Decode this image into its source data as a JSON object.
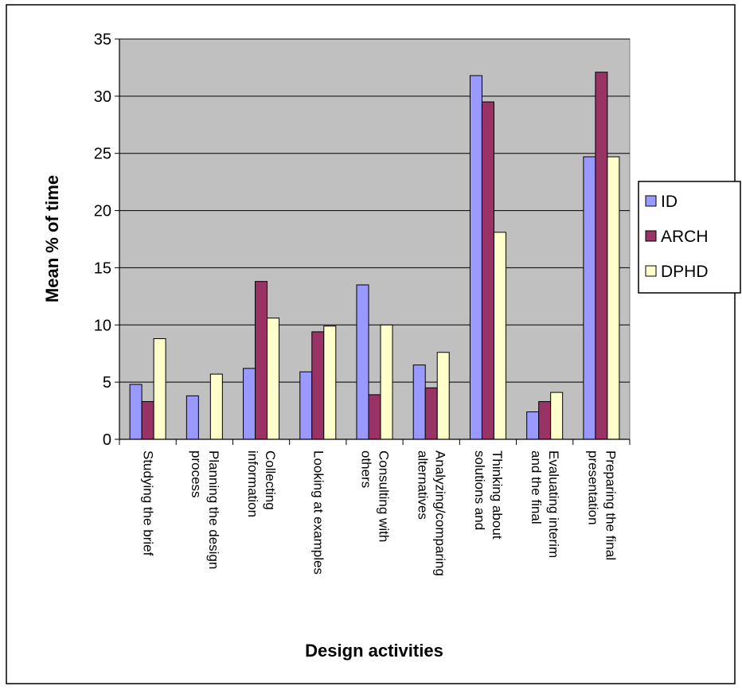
{
  "chart_data": {
    "type": "bar",
    "ylabel": "Mean % of time",
    "xlabel": "Design activities",
    "ylim": [
      0,
      35
    ],
    "yticks": [
      0,
      5,
      10,
      15,
      20,
      25,
      30,
      35
    ],
    "grid": true,
    "legend_position": "right",
    "categories": [
      [
        "Studying the brief"
      ],
      [
        "Planning the design",
        "process"
      ],
      [
        "Collecting",
        "information"
      ],
      [
        "Looking at examples"
      ],
      [
        "Consulting with",
        "others"
      ],
      [
        "Analyzing/comparing",
        "alternatives"
      ],
      [
        "Thinking about",
        "solutions and"
      ],
      [
        "Evaluating interim",
        "and the final"
      ],
      [
        "Preparing the final",
        "presentation"
      ]
    ],
    "series": [
      {
        "name": "ID",
        "color": "#9999ff",
        "values": [
          4.8,
          3.8,
          6.2,
          5.9,
          13.5,
          6.5,
          31.8,
          2.4,
          24.7
        ]
      },
      {
        "name": "ARCH",
        "color": "#993366",
        "values": [
          3.3,
          0,
          13.8,
          9.4,
          3.9,
          4.5,
          29.5,
          3.3,
          32.1
        ]
      },
      {
        "name": "DPHD",
        "color": "#ffffcc",
        "values": [
          8.8,
          5.7,
          10.6,
          9.9,
          10.0,
          7.6,
          18.1,
          4.1,
          24.7
        ]
      }
    ]
  }
}
